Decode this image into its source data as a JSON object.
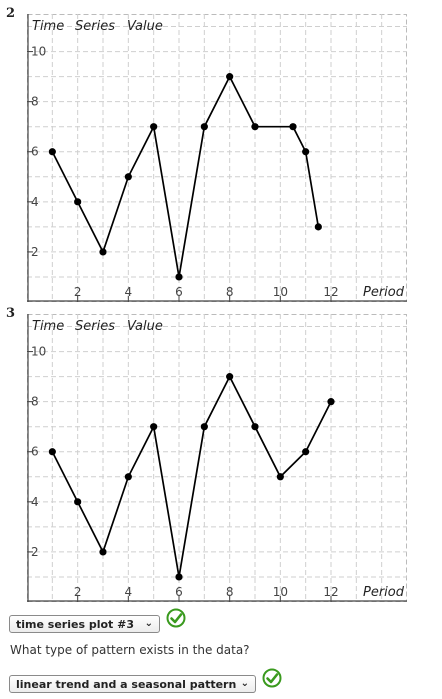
{
  "plots": [
    {
      "number": "2",
      "title": [
        "Time",
        "Series",
        "Value"
      ]
    },
    {
      "number": "3",
      "title": [
        "Time",
        "Series",
        "Value"
      ]
    }
  ],
  "chart_data": [
    {
      "type": "line",
      "title": "Time Series Value",
      "xlabel": "Period",
      "ylabel": "",
      "xlim": [
        0,
        15
      ],
      "ylim": [
        0,
        11.5
      ],
      "xticks": [
        2,
        4,
        6,
        8,
        10,
        12
      ],
      "yticks": [
        2,
        4,
        6,
        8,
        10
      ],
      "grid": true,
      "x": [
        1,
        2,
        3,
        4,
        5,
        6,
        7,
        8,
        9,
        10.5,
        11,
        11.5
      ],
      "values": [
        6,
        4,
        2,
        5,
        7,
        1,
        7,
        9,
        7,
        7,
        6,
        3
      ]
    },
    {
      "type": "line",
      "title": "Time Series Value",
      "xlabel": "Period",
      "ylabel": "",
      "xlim": [
        0,
        15
      ],
      "ylim": [
        0,
        11.5
      ],
      "xticks": [
        2,
        4,
        6,
        8,
        10,
        12
      ],
      "yticks": [
        2,
        4,
        6,
        8,
        10
      ],
      "grid": true,
      "x": [
        1,
        2,
        3,
        4,
        5,
        6,
        7,
        8,
        9,
        10,
        11,
        12
      ],
      "values": [
        6,
        4,
        2,
        5,
        7,
        1,
        7,
        9,
        7,
        5,
        6,
        8
      ]
    }
  ],
  "form": {
    "plot_select": {
      "value": "time series plot #3"
    },
    "question": "What type of pattern exists in the data?",
    "pattern_select": {
      "value": "linear trend and a seasonal pattern"
    },
    "check_color": "#3a9a1e"
  }
}
